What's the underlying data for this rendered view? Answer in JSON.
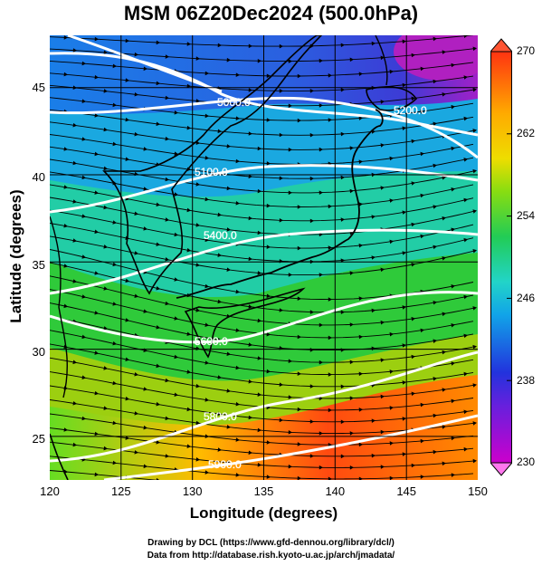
{
  "title": "MSM 06Z20Dec2024 (500.0hPa)",
  "footer": {
    "line1": "Drawing by DCL (https://www.gfd-dennou.org/library/dcl/)",
    "line2": "Data from http://database.rish.kyoto-u.ac.jp/arch/jmadata/"
  },
  "chart_data": {
    "type": "heatmap",
    "title": "MSM 06Z20Dec2024 (500.0hPa)",
    "xlabel": "Longitude (degrees)",
    "ylabel": "Latitude  (degrees)",
    "xlim": [
      120,
      150
    ],
    "ylim": [
      22.5,
      48
    ],
    "x_ticks": [
      "120",
      "125",
      "130",
      "135",
      "140",
      "145",
      "150"
    ],
    "y_ticks": [
      "25",
      "30",
      "35",
      "40",
      "45"
    ],
    "colorbar": {
      "range": [
        230,
        270
      ],
      "tick_labels": [
        "270",
        "262",
        "254",
        "246",
        "238",
        "230"
      ],
      "colors": [
        "#cc00cc",
        "#3344dd",
        "#11a4e8",
        "#22d4c8",
        "#22cc44",
        "#bbdd11",
        "#ffaa00",
        "#ff3311"
      ]
    },
    "contour_labels": [
      "5000.0",
      "5200.0",
      "5100.0",
      "5400.0",
      "5600.0",
      "5800.0",
      "5900.0"
    ]
  }
}
